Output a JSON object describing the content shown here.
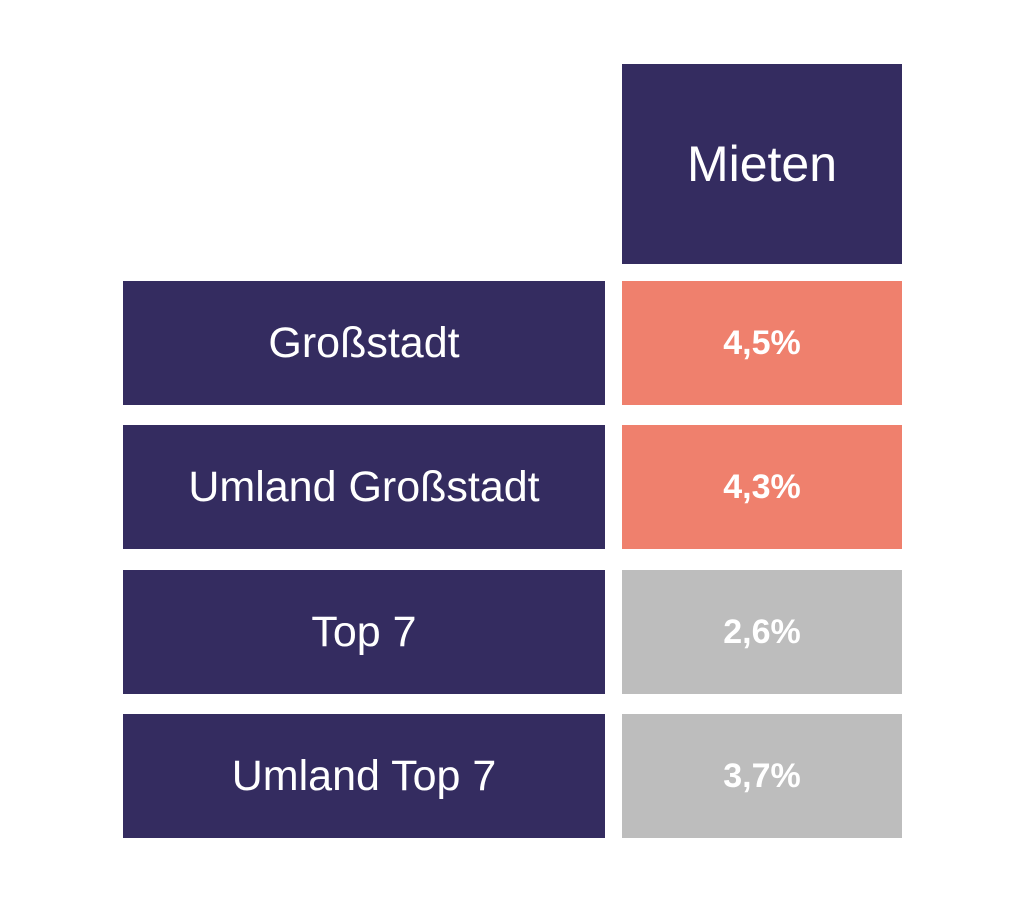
{
  "chart_data": {
    "type": "table",
    "column_header": "Mieten",
    "rows": [
      {
        "label": "Großstadt",
        "value_text": "4,5%",
        "value": 4.5,
        "highlight": true
      },
      {
        "label": "Umland Großstadt",
        "value_text": "4,3%",
        "value": 4.3,
        "highlight": true
      },
      {
        "label": "Top 7",
        "value_text": "2,6%",
        "value": 2.6,
        "highlight": false
      },
      {
        "label": "Umland Top 7",
        "value_text": "3,7%",
        "value": 3.7,
        "highlight": false
      }
    ],
    "colors": {
      "header_bg": "#342c60",
      "label_bg": "#342c60",
      "highlight_bg": "#ef806d",
      "neutral_bg": "#bdbdbd",
      "text": "#ffffff"
    }
  }
}
